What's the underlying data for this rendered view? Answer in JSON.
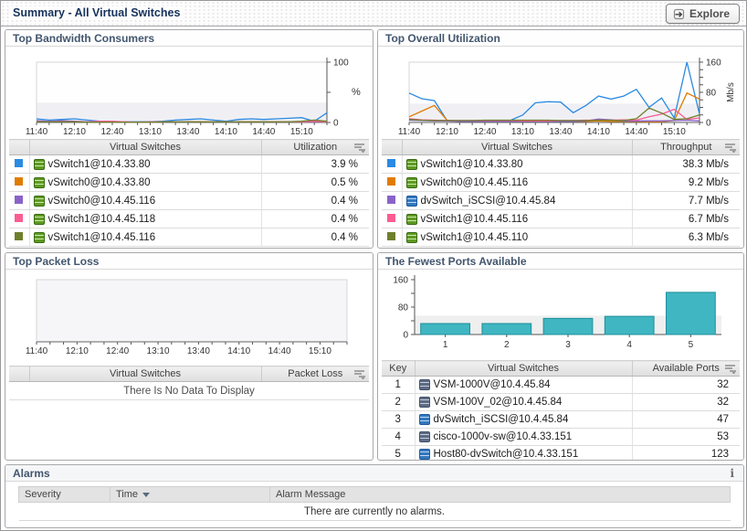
{
  "header": {
    "title": "Summary - All Virtual Switches",
    "explore_label": "Explore"
  },
  "panels": {
    "bandwidth": {
      "title": "Top Bandwidth Consumers",
      "table": {
        "columns": [
          "Virtual Switches",
          "Utilization"
        ],
        "rows": [
          {
            "color": "#2b8ae2",
            "icon": "vswitch",
            "name": "vSwitch1@10.4.33.80",
            "value": "3.9 %"
          },
          {
            "color": "#e07c00",
            "icon": "vswitch",
            "name": "vSwitch0@10.4.33.80",
            "value": "0.5 %"
          },
          {
            "color": "#8a63c9",
            "icon": "vswitch",
            "name": "vSwitch0@10.4.45.116",
            "value": "0.4 %"
          },
          {
            "color": "#fb5d93",
            "icon": "vswitch",
            "name": "vSwitch1@10.4.45.118",
            "value": "0.4 %"
          },
          {
            "color": "#6f7f2c",
            "icon": "vswitch",
            "name": "vSwitch1@10.4.45.116",
            "value": "0.4 %"
          }
        ]
      }
    },
    "utilization": {
      "title": "Top Overall Utilization",
      "table": {
        "columns": [
          "Virtual Switches",
          "Throughput"
        ],
        "rows": [
          {
            "color": "#2b8ae2",
            "icon": "vswitch",
            "name": "vSwitch1@10.4.33.80",
            "value": "38.3 Mb/s"
          },
          {
            "color": "#e07c00",
            "icon": "vswitch",
            "name": "vSwitch0@10.4.45.116",
            "value": "9.2 Mb/s"
          },
          {
            "color": "#8a63c9",
            "icon": "dvswitch",
            "name": "dvSwitch_iSCSI@10.4.45.84",
            "value": "7.7 Mb/s"
          },
          {
            "color": "#fb5d93",
            "icon": "vswitch",
            "name": "vSwitch1@10.4.45.116",
            "value": "6.7 Mb/s"
          },
          {
            "color": "#6f7f2c",
            "icon": "vswitch",
            "name": "vSwitch1@10.4.45.110",
            "value": "6.3 Mb/s"
          }
        ]
      }
    },
    "packetloss": {
      "title": "Top Packet Loss",
      "table": {
        "columns": [
          "Virtual Switches",
          "Packet Loss"
        ],
        "empty_message": "There Is No Data To Display"
      }
    },
    "ports": {
      "title": "The Fewest Ports Available",
      "table": {
        "columns": [
          "Key",
          "Virtual Switches",
          "Available Ports"
        ],
        "rows": [
          {
            "key": "1",
            "icon": "cisco",
            "name": "VSM-1000V@10.4.45.84",
            "value": "32"
          },
          {
            "key": "2",
            "icon": "cisco",
            "name": "VSM-100V_02@10.4.45.84",
            "value": "32"
          },
          {
            "key": "3",
            "icon": "dvswitch",
            "name": "dvSwitch_iSCSI@10.4.45.84",
            "value": "47"
          },
          {
            "key": "4",
            "icon": "cisco",
            "name": "cisco-1000v-sw@10.4.33.151",
            "value": "53"
          },
          {
            "key": "5",
            "icon": "dvswitch",
            "name": "Host80-dvSwitch@10.4.33.151",
            "value": "123"
          }
        ]
      }
    },
    "alarms": {
      "title": "Alarms",
      "info_icon": "i",
      "columns": [
        "Severity",
        "Time",
        "Alarm Message"
      ],
      "empty_message": "There are currently no alarms."
    }
  },
  "chart_data": [
    {
      "type": "line",
      "title": "Top Bandwidth Consumers",
      "x_ticks": [
        "11:40",
        "12:10",
        "12:40",
        "13:10",
        "13:40",
        "14:10",
        "14:40",
        "15:10"
      ],
      "n_points": 24,
      "label_every": 3,
      "ylim": [
        0,
        100
      ],
      "y_labeled": [
        0,
        100
      ],
      "y_tick_step": 50,
      "ylabel": "%",
      "ylabel_rotate": false,
      "band_max": 33,
      "grid": false,
      "legend_position": "table-below",
      "series": [
        {
          "name": "vSwitch1@10.4.33.80",
          "color": "#2b8ae2",
          "values": [
            6,
            4,
            5,
            6,
            4,
            2,
            1,
            1,
            1,
            1,
            2,
            4,
            5,
            6,
            4,
            2,
            5,
            6,
            5,
            6,
            7,
            8,
            2,
            16
          ]
        },
        {
          "name": "vSwitch0@10.4.33.80",
          "color": "#e07c00",
          "values": [
            1,
            1,
            1,
            1,
            1,
            1,
            0.4,
            0.4,
            0.4,
            1,
            1,
            1,
            1,
            1,
            1,
            1,
            1,
            1,
            1,
            1,
            1,
            1,
            3,
            1
          ]
        },
        {
          "name": "vSwitch0@10.4.45.116",
          "color": "#8a63c9",
          "values": [
            3,
            2,
            3,
            2,
            1,
            1,
            0.4,
            0.4,
            0.4,
            1,
            1,
            1,
            1,
            1,
            1,
            1,
            1,
            1,
            1,
            1,
            1,
            1,
            1,
            2
          ]
        },
        {
          "name": "vSwitch1@10.4.45.118",
          "color": "#fb5d93",
          "values": [
            1,
            1,
            1,
            1,
            1,
            2,
            2,
            1,
            0.4,
            0.4,
            1,
            1,
            1,
            1,
            1,
            1,
            1,
            1,
            1,
            1,
            1,
            1,
            2,
            1
          ]
        },
        {
          "name": "vSwitch1@10.4.45.116",
          "color": "#6f7f2c",
          "values": [
            1,
            1,
            1,
            1,
            0.4,
            0.4,
            0.4,
            0.4,
            0.4,
            0.4,
            1,
            1,
            1,
            1,
            1,
            1,
            1,
            1,
            1,
            1,
            1,
            2,
            4,
            2
          ]
        }
      ]
    },
    {
      "type": "line",
      "title": "Top Overall Utilization",
      "x_ticks": [
        "11:40",
        "12:10",
        "12:40",
        "13:10",
        "13:40",
        "14:10",
        "14:40",
        "15:10"
      ],
      "n_points": 24,
      "label_every": 3,
      "ylim": [
        0,
        160
      ],
      "y_labeled": [
        0,
        80,
        160
      ],
      "y_tick_step": 20,
      "ylabel": "Mb/s",
      "ylabel_rotate": true,
      "band_max": 50,
      "grid": false,
      "legend_position": "table-below",
      "series": [
        {
          "name": "vSwitch1@10.4.33.80",
          "color": "#2b8ae2",
          "values": [
            78,
            63,
            58,
            5,
            4,
            4,
            4,
            5,
            5,
            20,
            52,
            55,
            54,
            26,
            45,
            70,
            62,
            70,
            88,
            40,
            65,
            12,
            160,
            22
          ]
        },
        {
          "name": "vSwitch0@10.4.45.116",
          "color": "#e07c00",
          "values": [
            15,
            30,
            45,
            6,
            3,
            3,
            3,
            3,
            3,
            3,
            3,
            4,
            4,
            3,
            3,
            4,
            3,
            3,
            3,
            2,
            2,
            5,
            78,
            62
          ]
        },
        {
          "name": "dvSwitch_iSCSI@10.4.45.84",
          "color": "#8a63c9",
          "values": [
            6,
            5,
            4,
            4,
            3,
            3,
            3,
            3,
            3,
            3,
            3,
            3,
            3,
            3,
            4,
            9,
            7,
            4,
            4,
            4,
            4,
            5,
            6,
            4
          ]
        },
        {
          "name": "vSwitch1@10.4.45.116",
          "color": "#fb5d93",
          "values": [
            10,
            7,
            6,
            5,
            5,
            5,
            5,
            5,
            5,
            4,
            4,
            4,
            5,
            5,
            6,
            6,
            6,
            7,
            6,
            15,
            22,
            35,
            8,
            12
          ]
        },
        {
          "name": "vSwitch1@10.4.45.110",
          "color": "#6f7f2c",
          "values": [
            8,
            6,
            5,
            5,
            5,
            5,
            6,
            6,
            6,
            6,
            6,
            6,
            5,
            5,
            5,
            6,
            6,
            5,
            10,
            38,
            25,
            8,
            10,
            20
          ]
        }
      ]
    },
    {
      "type": "line",
      "title": "Top Packet Loss",
      "empty": true,
      "x_ticks": [
        "11:40",
        "12:10",
        "12:40",
        "13:10",
        "13:40",
        "14:10",
        "14:40",
        "15:10"
      ],
      "n_points": 24,
      "label_every": 3,
      "ylim": [
        0,
        1
      ],
      "y_labeled": [],
      "grid": false,
      "series": []
    },
    {
      "type": "bar",
      "title": "The Fewest Ports Available",
      "categories": [
        "1",
        "2",
        "3",
        "4",
        "5"
      ],
      "values": [
        32,
        32,
        47,
        53,
        123
      ],
      "ylim": [
        0,
        160
      ],
      "y_labeled": [
        0,
        80,
        160
      ],
      "y_tick_step": 40,
      "band_max": 55,
      "bar_color": "#3fb6c1",
      "bar_border": "#1d8f9b",
      "xlabel": "",
      "ylabel": ""
    }
  ]
}
